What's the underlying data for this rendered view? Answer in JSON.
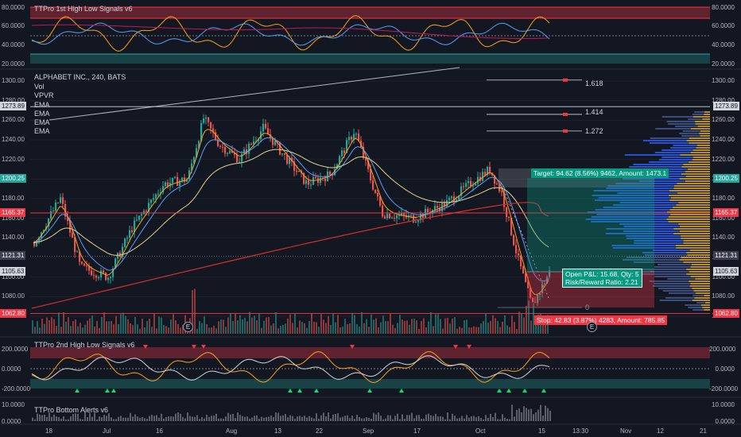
{
  "symbol_title": "ALPHABET INC., 240, BATS",
  "legend_main": [
    "Vol",
    "VPVR",
    "EMA",
    "EMA",
    "EMA",
    "EMA"
  ],
  "panes": {
    "top": {
      "title": "TTPro 1st High Low Signals v6",
      "ticks": [
        "80.0000",
        "60.0000",
        "40.0000",
        "20.0000"
      ]
    },
    "mid": {
      "title": "TTPro 2nd High Low Signals v6",
      "ticks": [
        "200.0000",
        "0.0000",
        "-200.0000"
      ]
    },
    "bottom": {
      "title": "TTPro Bottom Alerts v6",
      "ticks": [
        "10.0000",
        "0.0000"
      ]
    }
  },
  "price_axis": [
    "1300.00",
    "1280.00",
    "1260.00",
    "1240.00",
    "1220.00",
    "1200.00",
    "1180.00",
    "1160.00",
    "1140.00",
    "1120.00",
    "1100.00",
    "1080.00",
    "1060.00"
  ],
  "price_tags": {
    "left": [
      {
        "text": "1273.89",
        "bg": "#d1d4dc",
        "fg": "#131722",
        "price": 1273.89
      },
      {
        "text": "1200.25",
        "bg": "#26a69a",
        "fg": "#ffffff",
        "price": 1200.25
      },
      {
        "text": "1165.37",
        "bg": "#f23645",
        "fg": "#ffffff",
        "price": 1165.37
      },
      {
        "text": "1121.31",
        "bg": "#3c4150",
        "fg": "#ffffff",
        "price": 1121.31
      },
      {
        "text": "1105.63",
        "bg": "#d1d4dc",
        "fg": "#131722",
        "price": 1105.63
      },
      {
        "text": "1062.80",
        "bg": "#f23645",
        "fg": "#ffffff",
        "price": 1062.8
      }
    ],
    "right": [
      {
        "text": "1273.89",
        "bg": "#d1d4dc",
        "fg": "#131722",
        "price": 1273.89
      },
      {
        "text": "1200.25",
        "bg": "#26a69a",
        "fg": "#ffffff",
        "price": 1200.25
      },
      {
        "text": "1165.37",
        "bg": "#f23645",
        "fg": "#ffffff",
        "price": 1165.37
      },
      {
        "text": "1121.31",
        "bg": "#3c4150",
        "fg": "#ffffff",
        "price": 1121.31
      },
      {
        "text": "1105.63",
        "bg": "#d1d4dc",
        "fg": "#131722",
        "price": 1105.63
      },
      {
        "text": "1062.80",
        "bg": "#f23645",
        "fg": "#ffffff",
        "price": 1062.8
      }
    ]
  },
  "fib_levels": [
    {
      "text": "1.618",
      "price": 1301
    },
    {
      "text": "1.414",
      "price": 1266
    },
    {
      "text": "1.272",
      "price": 1249
    }
  ],
  "fib_zero": "0",
  "position": {
    "target": "Target: 94.62 (8.56%) 9462, Amount: 1473.1",
    "open_pnl": "Open P&L: 15.68, Qty: 5",
    "risk_reward": "Risk/Reward Ratio: 2.21",
    "stop": "Stop: 42.83 (3.87%) 4283, Amount: 785.85"
  },
  "earnings_marks": [
    "E",
    "E"
  ],
  "x_axis": [
    "18",
    "Jul",
    "16",
    "Aug",
    "13",
    "22",
    "Sep",
    "17",
    "Oct",
    "15",
    "13:30",
    "Nov",
    "12",
    "21"
  ],
  "colors": {
    "bg": "#131722",
    "up": "#26a69a",
    "down": "#ef5350",
    "accent_green": "#00e676",
    "accent_red": "#ff5252"
  }
}
